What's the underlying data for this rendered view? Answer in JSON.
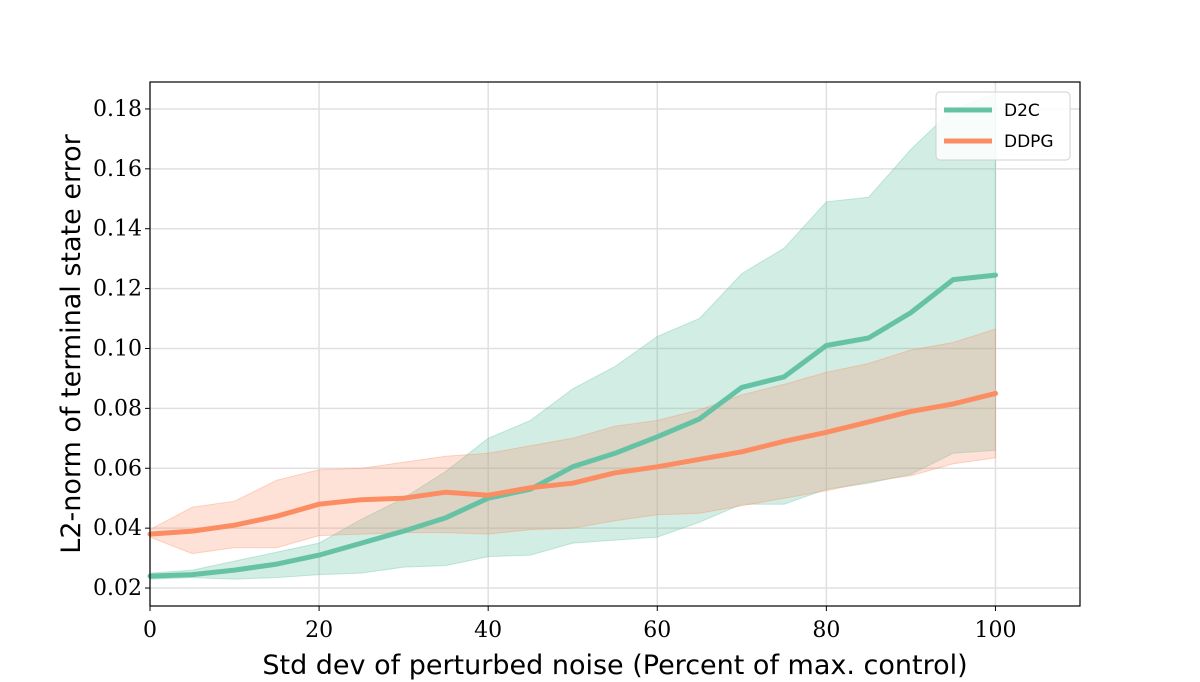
{
  "chart_data": {
    "type": "line",
    "title": "",
    "xlabel": "Std dev of perturbed noise (Percent of max. control)",
    "ylabel": "L2-norm of terminal state error",
    "xlim": [
      0,
      110
    ],
    "ylim": [
      0.014,
      0.189
    ],
    "xticks": [
      0,
      20,
      40,
      60,
      80,
      100
    ],
    "xtick_labels": [
      "0",
      "20",
      "40",
      "60",
      "80",
      "100"
    ],
    "yticks": [
      0.02,
      0.04,
      0.06,
      0.08,
      0.1,
      0.12,
      0.14,
      0.16,
      0.18
    ],
    "ytick_labels": [
      "0.02",
      "0.04",
      "0.06",
      "0.08",
      "0.10",
      "0.12",
      "0.14",
      "0.16",
      "0.18"
    ],
    "grid": true,
    "legend_position": "top-right",
    "x": [
      0,
      5,
      10,
      15,
      20,
      25,
      30,
      35,
      40,
      45,
      50,
      55,
      60,
      65,
      70,
      75,
      80,
      85,
      90,
      95,
      100
    ],
    "series": [
      {
        "name": "D2C",
        "color": "#66c2a5",
        "values": [
          0.024,
          0.0245,
          0.026,
          0.028,
          0.031,
          0.035,
          0.039,
          0.0435,
          0.05,
          0.053,
          0.0605,
          0.065,
          0.0705,
          0.0765,
          0.087,
          0.0905,
          0.101,
          0.1035,
          0.112,
          0.123,
          0.1245
        ],
        "upper": [
          0.025,
          0.026,
          0.029,
          0.032,
          0.035,
          0.043,
          0.05,
          0.059,
          0.07,
          0.076,
          0.0865,
          0.094,
          0.104,
          0.11,
          0.125,
          0.1335,
          0.149,
          0.1505,
          0.1665,
          0.18,
          0.185
        ],
        "lower": [
          0.023,
          0.0235,
          0.023,
          0.0235,
          0.0245,
          0.025,
          0.027,
          0.0275,
          0.0305,
          0.031,
          0.035,
          0.036,
          0.037,
          0.042,
          0.048,
          0.048,
          0.053,
          0.055,
          0.058,
          0.065,
          0.066
        ]
      },
      {
        "name": "DDPG",
        "color": "#fc8d62",
        "values": [
          0.038,
          0.039,
          0.041,
          0.044,
          0.048,
          0.0495,
          0.05,
          0.052,
          0.051,
          0.0535,
          0.055,
          0.0585,
          0.0605,
          0.063,
          0.0655,
          0.069,
          0.072,
          0.0755,
          0.079,
          0.0815,
          0.085
        ],
        "upper": [
          0.0395,
          0.047,
          0.049,
          0.056,
          0.0595,
          0.06,
          0.062,
          0.064,
          0.065,
          0.0675,
          0.07,
          0.074,
          0.076,
          0.0795,
          0.0845,
          0.088,
          0.092,
          0.095,
          0.0995,
          0.102,
          0.1065
        ],
        "lower": [
          0.037,
          0.0315,
          0.0335,
          0.0335,
          0.0375,
          0.038,
          0.0385,
          0.0385,
          0.038,
          0.0395,
          0.04,
          0.0425,
          0.0445,
          0.045,
          0.0475,
          0.05,
          0.0525,
          0.0555,
          0.0575,
          0.0615,
          0.0635
        ]
      }
    ]
  }
}
